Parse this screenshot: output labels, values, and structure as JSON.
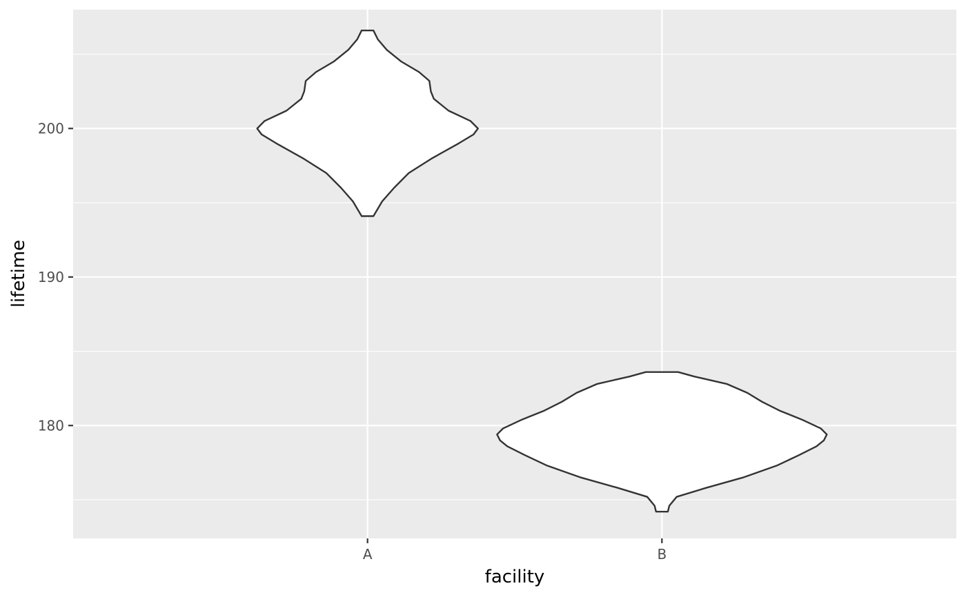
{
  "chart_data": {
    "type": "violin",
    "xlabel": "facility",
    "ylabel": "lifetime",
    "categories": [
      "A",
      "B"
    ],
    "ylim": [
      172.4,
      208
    ],
    "y_ticks": [
      180,
      190,
      200
    ],
    "y_minor_ticks": [
      175,
      185,
      195,
      205
    ],
    "grid": true,
    "fill_color": "#ffffff",
    "outline_color": "#333333",
    "panel_background": "#ebebeb",
    "gridline_color": "#ffffff",
    "violins": [
      {
        "category": "A",
        "y_min": 194.1,
        "y_max": 206.6,
        "density_profile": [
          {
            "y": 194.1,
            "half_width": 0.04
          },
          {
            "y": 195.1,
            "half_width": 0.1
          },
          {
            "y": 196.0,
            "half_width": 0.18
          },
          {
            "y": 197.0,
            "half_width": 0.28
          },
          {
            "y": 198.0,
            "half_width": 0.44
          },
          {
            "y": 199.0,
            "half_width": 0.62
          },
          {
            "y": 199.6,
            "half_width": 0.72
          },
          {
            "y": 200.0,
            "half_width": 0.75
          },
          {
            "y": 200.5,
            "half_width": 0.7
          },
          {
            "y": 201.2,
            "half_width": 0.55
          },
          {
            "y": 202.0,
            "half_width": 0.45
          },
          {
            "y": 202.5,
            "half_width": 0.43
          },
          {
            "y": 203.2,
            "half_width": 0.42
          },
          {
            "y": 203.8,
            "half_width": 0.35
          },
          {
            "y": 204.5,
            "half_width": 0.23
          },
          {
            "y": 205.3,
            "half_width": 0.13
          },
          {
            "y": 206.0,
            "half_width": 0.07
          },
          {
            "y": 206.6,
            "half_width": 0.04
          }
        ]
      },
      {
        "category": "B",
        "y_min": 174.2,
        "y_max": 183.6,
        "density_profile": [
          {
            "y": 174.2,
            "half_width": 0.04
          },
          {
            "y": 174.6,
            "half_width": 0.05
          },
          {
            "y": 175.2,
            "half_width": 0.1
          },
          {
            "y": 175.8,
            "half_width": 0.3
          },
          {
            "y": 176.5,
            "half_width": 0.55
          },
          {
            "y": 177.3,
            "half_width": 0.78
          },
          {
            "y": 178.0,
            "half_width": 0.93
          },
          {
            "y": 178.6,
            "half_width": 1.05
          },
          {
            "y": 179.0,
            "half_width": 1.1
          },
          {
            "y": 179.4,
            "half_width": 1.12
          },
          {
            "y": 179.8,
            "half_width": 1.08
          },
          {
            "y": 180.4,
            "half_width": 0.95
          },
          {
            "y": 181.0,
            "half_width": 0.8
          },
          {
            "y": 181.6,
            "half_width": 0.68
          },
          {
            "y": 182.2,
            "half_width": 0.58
          },
          {
            "y": 182.8,
            "half_width": 0.44
          },
          {
            "y": 183.3,
            "half_width": 0.22
          },
          {
            "y": 183.6,
            "half_width": 0.11
          }
        ]
      }
    ]
  }
}
